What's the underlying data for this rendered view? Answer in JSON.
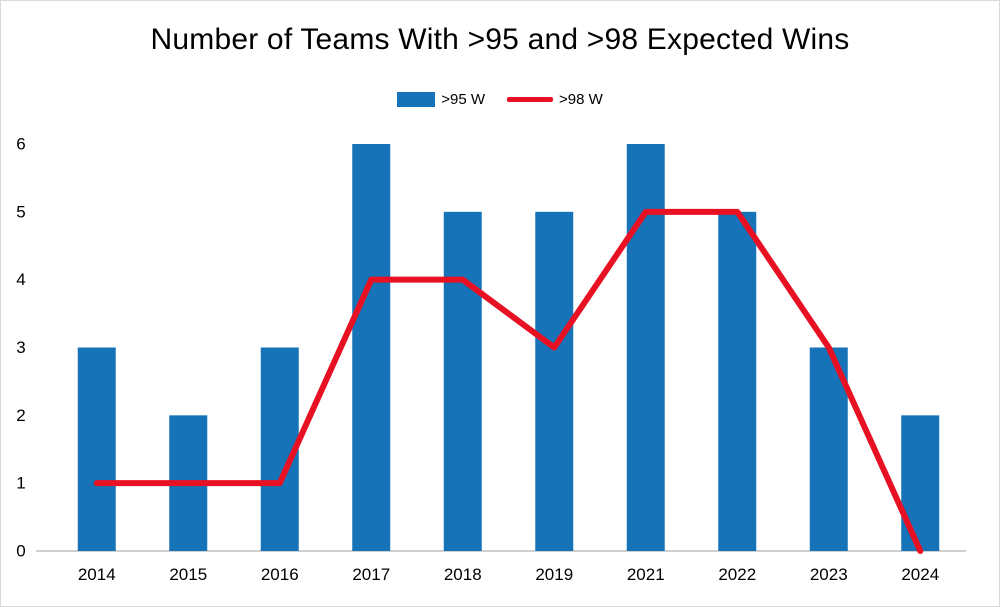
{
  "chart_data": {
    "type": "combo",
    "title": "Number of Teams With >95 and >98 Expected Wins",
    "categories": [
      "2014",
      "2015",
      "2016",
      "2017",
      "2018",
      "2019",
      "2021",
      "2022",
      "2023",
      "2024"
    ],
    "series": [
      {
        "name": ">95 W",
        "type": "bar",
        "color": "#1673b8",
        "values": [
          3,
          2,
          3,
          6,
          5,
          5,
          6,
          5,
          3,
          2
        ]
      },
      {
        "name": ">98 W",
        "type": "line",
        "color": "#e81123",
        "values": [
          1,
          1,
          1,
          4,
          4,
          3,
          5,
          5,
          3,
          0
        ]
      }
    ],
    "xlabel": "",
    "ylabel": "",
    "ylim": [
      0,
      6
    ],
    "yticks": [
      0,
      1,
      2,
      3,
      4,
      5,
      6
    ],
    "grid": false,
    "legend_position": "top-center",
    "axis_color": "#bfbfbf",
    "text_color": "#000000",
    "background_color": "#ffffff"
  }
}
